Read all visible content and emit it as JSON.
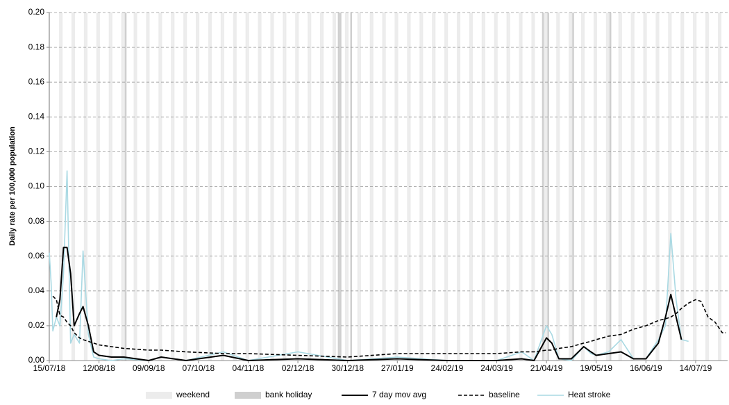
{
  "chart_data": {
    "type": "line",
    "y_label": "Daily rate per 100,000 population",
    "xlim": [
      "15/07/18",
      "01/08/19"
    ],
    "xticks": [
      "15/07/18",
      "12/08/18",
      "09/09/18",
      "07/10/18",
      "04/11/18",
      "02/12/18",
      "30/12/18",
      "27/01/19",
      "24/02/19",
      "24/03/19",
      "21/04/19",
      "19/05/19",
      "16/06/19",
      "14/07/19"
    ],
    "ylim": [
      0,
      0.2
    ],
    "yticks": [
      {
        "value": 0,
        "label": "0.00"
      },
      {
        "value": 0.02,
        "label": "0.02"
      },
      {
        "value": 0.04,
        "label": "0.04"
      },
      {
        "value": 0.06,
        "label": "0.06"
      },
      {
        "value": 0.08,
        "label": "0.08"
      },
      {
        "value": 0.1,
        "label": "0.10"
      },
      {
        "value": 0.12,
        "label": "0.12"
      },
      {
        "value": 0.14,
        "label": "0.14"
      },
      {
        "value": 0.16,
        "label": "0.16"
      },
      {
        "value": 0.18,
        "label": "0.18"
      },
      {
        "value": 0.2,
        "label": "0.20"
      }
    ],
    "grid": true,
    "weekend": {
      "name": "weekend",
      "color": "#ececec"
    },
    "bank_holiday": {
      "name": "bank holiday",
      "color": "#cfcfcf",
      "dates": [
        "27/08/18",
        "25/12/18",
        "26/12/18",
        "01/01/19",
        "19/04/19",
        "22/04/19",
        "06/05/19",
        "27/05/19"
      ]
    },
    "x": [
      "15/07/18",
      "16/07/18",
      "17/07/18",
      "19/07/18",
      "21/07/18",
      "23/07/18",
      "25/07/18",
      "27/07/18",
      "29/07/18",
      "01/08/18",
      "03/08/18",
      "06/08/18",
      "09/08/18",
      "12/08/18",
      "19/08/18",
      "26/08/18",
      "09/09/18",
      "16/09/18",
      "30/09/18",
      "21/10/18",
      "04/11/18",
      "02/12/18",
      "30/12/18",
      "27/01/19",
      "24/02/19",
      "24/03/19",
      "07/04/19",
      "14/04/19",
      "21/04/19",
      "24/04/19",
      "28/04/19",
      "05/05/19",
      "12/05/19",
      "16/05/19",
      "19/05/19",
      "26/05/19",
      "02/06/19",
      "09/06/19",
      "16/06/19",
      "23/06/19",
      "27/06/19",
      "30/06/19",
      "03/07/19",
      "06/07/19",
      "10/07/19",
      "14/07/19",
      "17/07/19",
      "21/07/19",
      "25/07/19",
      "29/07/19",
      "31/07/19"
    ],
    "series": [
      {
        "name": "7 day mov avg",
        "color": "#000000",
        "dashed": false,
        "width": 2,
        "values": [
          null,
          null,
          null,
          0.025,
          0.035,
          0.065,
          0.065,
          0.05,
          0.02,
          0.027,
          0.031,
          0.02,
          0.005,
          0.003,
          0.002,
          0.002,
          0,
          0.002,
          0,
          0.003,
          0,
          0.001,
          0,
          0.001,
          0,
          0,
          0.001,
          0,
          0.013,
          0.01,
          0.001,
          0.001,
          0.008,
          0.005,
          0.003,
          0.004,
          0.005,
          0.001,
          0.001,
          0.01,
          0.025,
          0.038,
          0.025,
          0.012,
          null,
          null,
          null,
          null,
          null,
          null,
          null
        ]
      },
      {
        "name": "baseline",
        "color": "#000000",
        "dashed": true,
        "width": 1.6,
        "values": [
          null,
          null,
          0.037,
          0.035,
          0.026,
          0.025,
          0.022,
          0.02,
          0.016,
          0.013,
          0.012,
          0.011,
          0.01,
          0.009,
          0.008,
          0.007,
          0.006,
          0.006,
          0.005,
          0.004,
          0.004,
          0.003,
          0.002,
          0.004,
          0.004,
          0.004,
          0.005,
          0.005,
          0.006,
          0.006,
          0.007,
          0.008,
          0.01,
          0.011,
          0.012,
          0.014,
          0.015,
          0.018,
          0.02,
          0.023,
          0.024,
          0.025,
          0.027,
          0.03,
          0.033,
          0.035,
          0.034,
          0.025,
          0.022,
          0.016,
          0.016
        ]
      },
      {
        "name": "Heat stroke",
        "color": "#a9d9e3",
        "dashed": false,
        "width": 1.6,
        "values": [
          0.062,
          0.045,
          0.017,
          0.025,
          0.02,
          0.05,
          0.109,
          0.01,
          0.015,
          0.01,
          0.063,
          0.015,
          0.002,
          0.001,
          0,
          0.001,
          0,
          0.002,
          0,
          0.005,
          0,
          0.005,
          0,
          0.002,
          0,
          0,
          0.005,
          0,
          0.02,
          0.015,
          0.001,
          0,
          0.008,
          0.004,
          0.003,
          0.005,
          0.012,
          0.001,
          0.001,
          0.012,
          0.02,
          0.073,
          0.035,
          0.012,
          0.011,
          null,
          null,
          null,
          null,
          null,
          null
        ]
      }
    ]
  }
}
